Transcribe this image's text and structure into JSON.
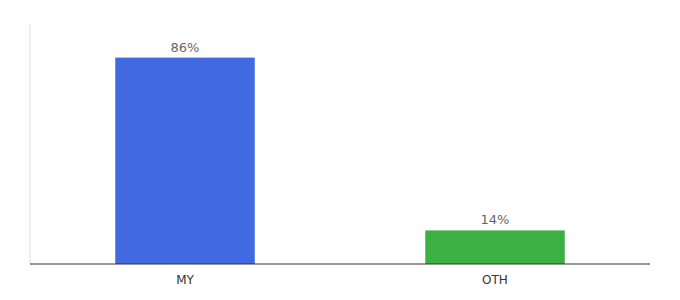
{
  "chart_data": {
    "type": "bar",
    "categories": [
      "MY",
      "OTH"
    ],
    "values": [
      86,
      14
    ],
    "value_labels": [
      "86%",
      "14%"
    ],
    "colors": [
      "#4169E1",
      "#3CB043"
    ],
    "ylim": [
      0,
      100
    ],
    "data_labels": true,
    "tick_labels": "x"
  }
}
